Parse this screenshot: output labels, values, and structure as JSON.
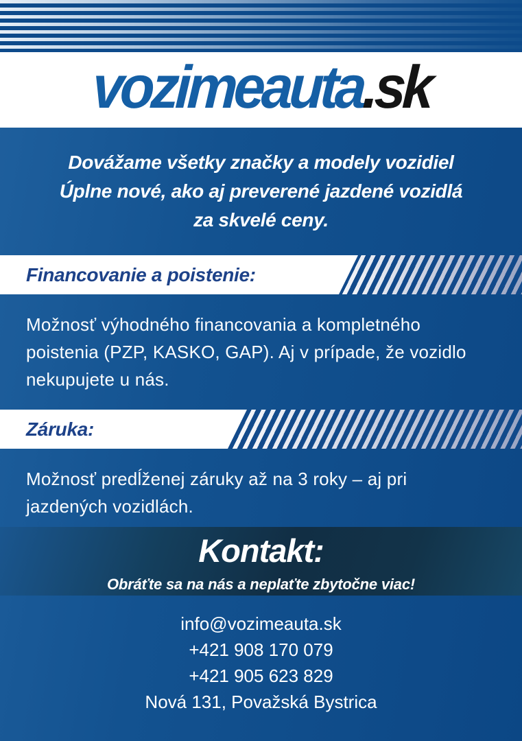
{
  "brand": {
    "logo_primary": "vozimeauta",
    "logo_suffix": ".sk"
  },
  "intro": {
    "lines": [
      "Dovážame všetky značky a modely vozidiel",
      "Úplne nové, ako aj preverené jazdené vozidlá",
      "za skvelé ceny."
    ]
  },
  "sections": [
    {
      "title": "Financovanie a poistenie:",
      "lines": [
        "Možnosť výhodného financovania a kompletného",
        "poistenia (PZP, KASKO, GAP). Aj v prípade, že vozidlo",
        "nekupujete u nás."
      ]
    },
    {
      "title": "Záruka:",
      "lines": [
        "Možnosť predĺženej záruky až na 3 roky – aj pri",
        "jazdených vozidlách."
      ]
    }
  ],
  "contact": {
    "heading": "Kontakt:",
    "tagline": "Obráťte sa na nás a neplaťte zbytočne viac!",
    "email": "info@vozimeauta.sk",
    "phones": [
      "+421 908 170 079",
      "+421 905 623 829"
    ],
    "address": "Nová 131, Považská Bystrica"
  },
  "colors": {
    "background_blue": "#0f4d8c",
    "logo_blue": "#155fa5",
    "logo_black": "#141414",
    "banner_text_navy": "#1d4289",
    "stripe_dark": "#124a8b",
    "stripe_fade_gray": "#9aa4c2",
    "contact_band_dark": "#112e44",
    "text_white": "#ffffff"
  }
}
